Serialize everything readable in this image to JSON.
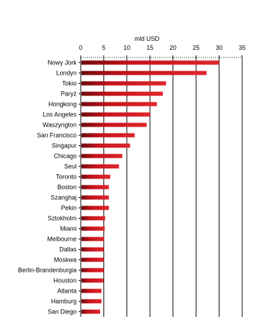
{
  "chart_data": {
    "type": "bar",
    "orientation": "horizontal",
    "axis_unit_label": "mld USD",
    "xlim": [
      0,
      35
    ],
    "x_ticks": [
      0,
      5,
      10,
      15,
      20,
      25,
      30,
      35
    ],
    "grid": true,
    "bar_color": "#c4121a",
    "categories": [
      "Nowy Jork",
      "Londyn",
      "Tokio",
      "Paryż",
      "Hongkong",
      "Los Angeles",
      "Waszyngton",
      "San Francisco",
      "Singapur",
      "Chicago",
      "Seul",
      "Toronto",
      "Boston",
      "Szanghaj",
      "Pekin",
      "Sztokholm",
      "Miami",
      "Melbourne",
      "Dallas",
      "Moskwa",
      "Berlin-Brandenburgia",
      "Houston",
      "Atlanta",
      "Hamburg",
      "San Diego"
    ],
    "values": [
      30,
      27.3,
      18.5,
      17.8,
      16.5,
      15,
      14.3,
      11.7,
      10.7,
      9,
      8.3,
      6.4,
      6.1,
      6.1,
      6.1,
      5.3,
      5.2,
      5.1,
      5.0,
      5.0,
      5.0,
      4.9,
      4.5,
      4.5,
      4.2
    ]
  }
}
